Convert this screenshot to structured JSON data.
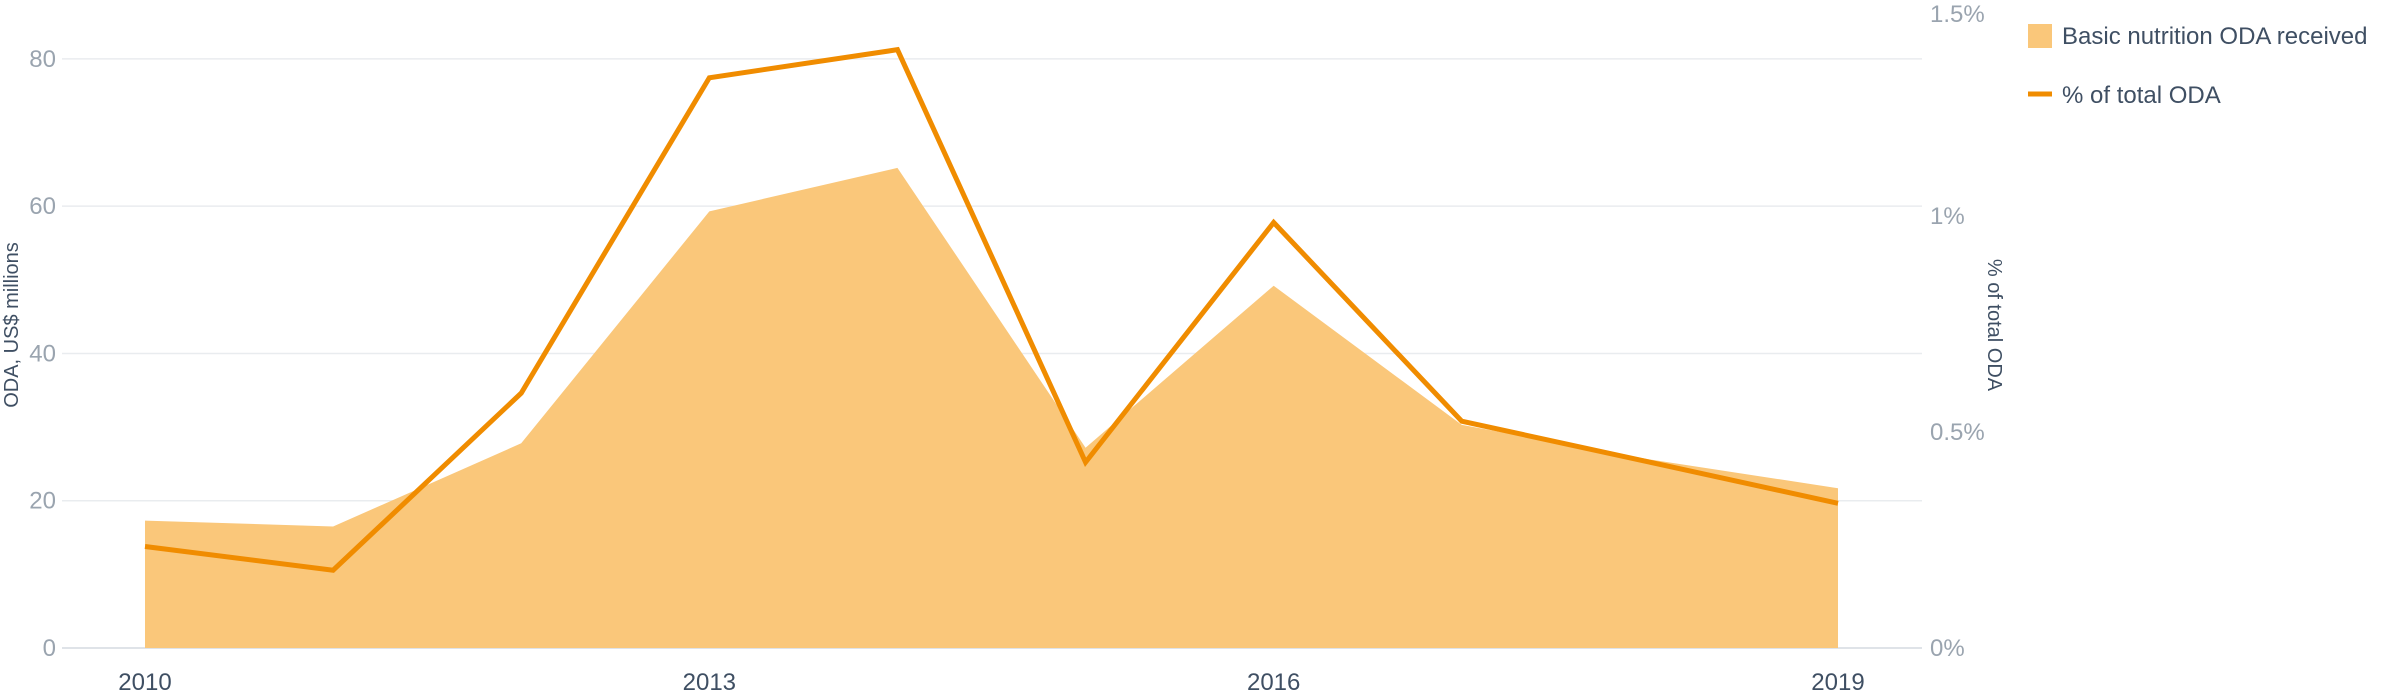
{
  "chart_data": {
    "type": "area",
    "x": [
      "2010",
      "2011",
      "2012",
      "2013",
      "2014",
      "2015",
      "2016",
      "2017",
      "2018",
      "2019"
    ],
    "x_tick_labels": [
      "2010",
      "2013",
      "2016",
      "2019"
    ],
    "series": [
      {
        "name": "Basic nutrition ODA received",
        "type": "area",
        "axis": "left",
        "color": "#fac77a",
        "values": [
          17.3,
          16.5,
          27.8,
          59.3,
          65.2,
          27.2,
          49.2,
          30.3,
          25.6,
          21.7
        ]
      },
      {
        "name": "% of total ODA",
        "type": "line",
        "axis": "right",
        "color": "#f08c00",
        "values": [
          0.235,
          0.18,
          0.59,
          1.32,
          1.385,
          0.43,
          0.985,
          0.525,
          0.43,
          0.335
        ]
      }
    ],
    "left_axis": {
      "label": "ODA, US$ millions",
      "range": [
        0,
        88
      ],
      "ticks": [
        0,
        20,
        40,
        60,
        80
      ],
      "tick_labels": [
        "0",
        "20",
        "40",
        "60",
        "80"
      ]
    },
    "right_axis": {
      "label": "% of total ODA",
      "range": [
        0,
        1.5
      ],
      "ticks": [
        0,
        0.5,
        1,
        1.5
      ],
      "tick_labels": [
        "0%",
        "0.5%",
        "1%",
        "1.5%"
      ]
    },
    "grid": true,
    "legend": {
      "placement": "top-right",
      "items": [
        "Basic nutrition ODA received",
        "% of total ODA"
      ]
    }
  }
}
